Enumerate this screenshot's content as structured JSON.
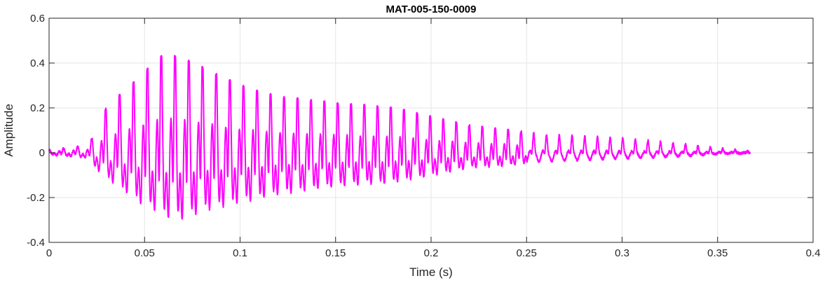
{
  "chart_data": {
    "type": "line",
    "title": "MAT-005-150-0009",
    "xlabel": "Time (s)",
    "ylabel": "Amplitude",
    "xlim": [
      0,
      0.4
    ],
    "ylim": [
      -0.4,
      0.6
    ],
    "xticks": [
      0,
      0.05,
      0.1,
      0.15,
      0.2,
      0.25,
      0.3,
      0.35,
      0.4
    ],
    "xtick_labels": [
      "0",
      "0.05",
      "0.1",
      "0.15",
      "0.2",
      "0.25",
      "0.3",
      "0.35",
      "0.4"
    ],
    "yticks": [
      -0.4,
      -0.2,
      0,
      0.2,
      0.4,
      0.6
    ],
    "ytick_labels": [
      "-0.4",
      "-0.2",
      "0",
      "0.2",
      "0.4",
      "0.6"
    ],
    "grid": true,
    "legend": "none",
    "series": [
      {
        "color": "#ff00ff",
        "description_of_shape": "oscillating decaying waveform",
        "envelope": {
          "time_s": [
            0,
            0.02,
            0.025,
            0.03,
            0.045,
            0.06,
            0.07,
            0.08,
            0.1,
            0.12,
            0.15,
            0.18,
            0.22,
            0.26,
            0.3,
            0.33,
            0.35,
            0.367
          ],
          "upper": [
            0.01,
            0.03,
            0.1,
            0.2,
            0.32,
            0.44,
            0.42,
            0.38,
            0.3,
            0.25,
            0.22,
            0.2,
            0.12,
            0.08,
            0.065,
            0.04,
            0.02,
            0.005
          ],
          "lower": [
            -0.01,
            -0.03,
            -0.1,
            -0.15,
            -0.28,
            -0.38,
            -0.4,
            -0.35,
            -0.3,
            -0.25,
            -0.2,
            -0.18,
            -0.09,
            -0.06,
            -0.04,
            -0.025,
            -0.01,
            -0.002
          ]
        },
        "end_time_s": 0.367
      }
    ],
    "colors": {
      "grid": "#e6e6e6",
      "axes": "#262626",
      "line": "#ff00ff"
    }
  }
}
